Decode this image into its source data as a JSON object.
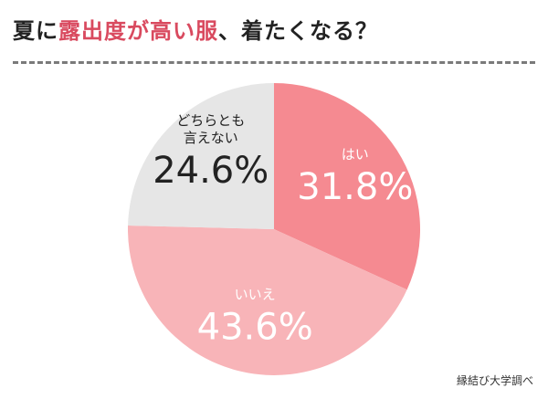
{
  "title": {
    "before": "夏に",
    "highlight": "露出度が高い服",
    "after": "、着たくなる？"
  },
  "source": "縁結び大学調べ",
  "colors": {
    "title_highlight": "#d94a5f",
    "hai": "#f58a91",
    "iie": "#f8b4b8",
    "dochira": "#e6e6e6"
  },
  "chart_data": {
    "type": "pie",
    "title": "夏に露出度が高い服、着たくなる？",
    "slices": [
      {
        "label": "はい",
        "value": 31.8,
        "display": "31.8%"
      },
      {
        "label": "いいえ",
        "value": 43.6,
        "display": "43.6%"
      },
      {
        "label": "どちらとも\n言えない",
        "value": 24.6,
        "display": "24.6%"
      }
    ]
  }
}
